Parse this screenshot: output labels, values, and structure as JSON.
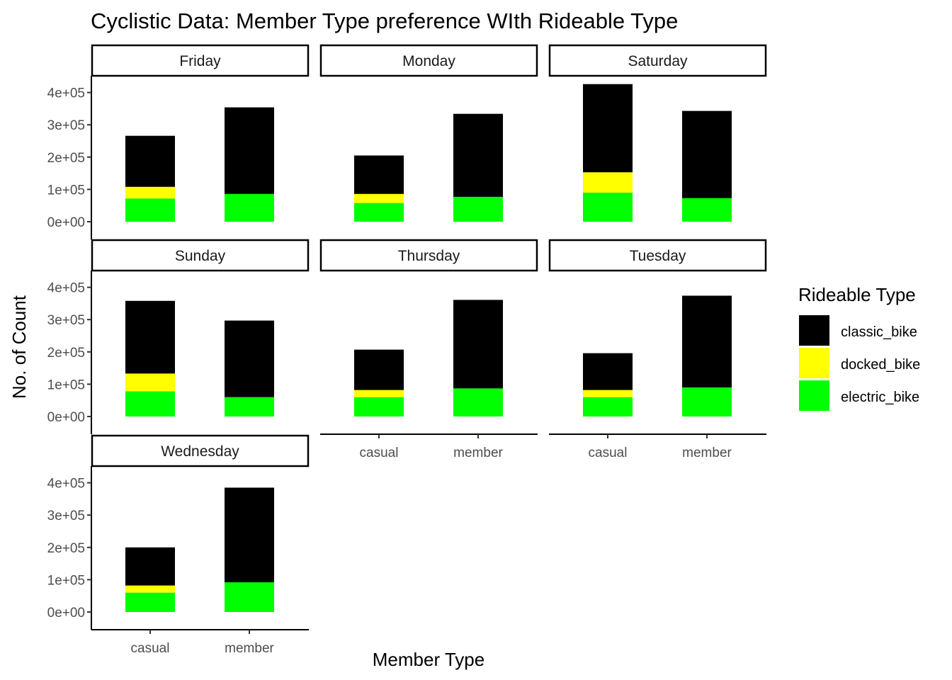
{
  "chart_data": {
    "type": "bar",
    "stacked": true,
    "title": "Cyclistic Data: Member Type preference WIth Rideable Type",
    "xlabel": "Member Type",
    "ylabel": "No. of Count",
    "ylim": [
      0,
      440000
    ],
    "yticks": [
      0,
      100000,
      200000,
      300000,
      400000
    ],
    "ytick_labels": [
      "0e+00",
      "1e+05",
      "2e+05",
      "3e+05",
      "4e+05"
    ],
    "categories": [
      "casual",
      "member"
    ],
    "grid": false,
    "legend": {
      "title": "Rideable Type",
      "placement": "right",
      "items": [
        {
          "name": "classic_bike",
          "color": "#000000"
        },
        {
          "name": "docked_bike",
          "color": "#ffff00"
        },
        {
          "name": "electric_bike",
          "color": "#00ff00"
        }
      ]
    },
    "facets": [
      {
        "name": "Friday",
        "series": [
          {
            "name": "electric_bike",
            "values": [
              72000,
              86000
            ]
          },
          {
            "name": "docked_bike",
            "values": [
              36000,
              0
            ]
          },
          {
            "name": "classic_bike",
            "values": [
              158000,
              268000
            ]
          }
        ]
      },
      {
        "name": "Monday",
        "series": [
          {
            "name": "electric_bike",
            "values": [
              58000,
              77000
            ]
          },
          {
            "name": "docked_bike",
            "values": [
              28000,
              0
            ]
          },
          {
            "name": "classic_bike",
            "values": [
              119000,
              257000
            ]
          }
        ]
      },
      {
        "name": "Saturday",
        "series": [
          {
            "name": "electric_bike",
            "values": [
              90000,
              73000
            ]
          },
          {
            "name": "docked_bike",
            "values": [
              63000,
              0
            ]
          },
          {
            "name": "classic_bike",
            "values": [
              273000,
              270000
            ]
          }
        ]
      },
      {
        "name": "Sunday",
        "series": [
          {
            "name": "electric_bike",
            "values": [
              78000,
              60000
            ]
          },
          {
            "name": "docked_bike",
            "values": [
              55000,
              0
            ]
          },
          {
            "name": "classic_bike",
            "values": [
              225000,
              237000
            ]
          }
        ]
      },
      {
        "name": "Thursday",
        "series": [
          {
            "name": "electric_bike",
            "values": [
              60000,
              87000
            ]
          },
          {
            "name": "docked_bike",
            "values": [
              22000,
              0
            ]
          },
          {
            "name": "classic_bike",
            "values": [
              125000,
              274000
            ]
          }
        ]
      },
      {
        "name": "Tuesday",
        "series": [
          {
            "name": "electric_bike",
            "values": [
              60000,
              90000
            ]
          },
          {
            "name": "docked_bike",
            "values": [
              22000,
              0
            ]
          },
          {
            "name": "classic_bike",
            "values": [
              114000,
              284000
            ]
          }
        ]
      },
      {
        "name": "Wednesday",
        "series": [
          {
            "name": "electric_bike",
            "values": [
              60000,
              92000
            ]
          },
          {
            "name": "docked_bike",
            "values": [
              22000,
              0
            ]
          },
          {
            "name": "classic_bike",
            "values": [
              118000,
              293000
            ]
          }
        ]
      }
    ]
  }
}
